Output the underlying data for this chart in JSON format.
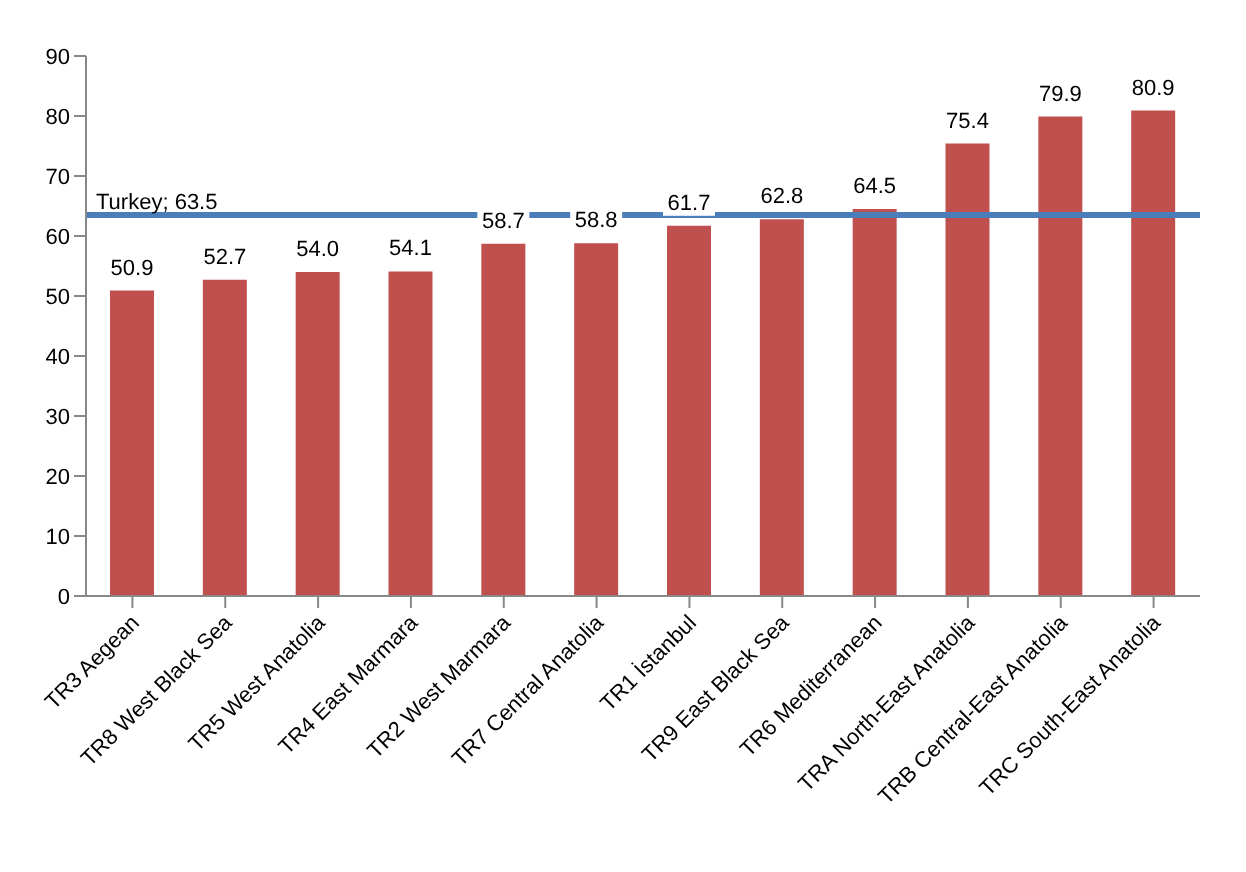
{
  "chart_data": {
    "type": "bar",
    "categories": [
      "TR3 Aegean",
      "TR8 West Black Sea",
      "TR5 West Anatolia",
      "TR4 East Marmara",
      "TR2 West Marmara",
      "TR7 Central Anatolia",
      "TR1 İstanbul",
      "TR9 East Black Sea",
      "TR6 Mediterranean",
      "TRA North-East  Anatolia",
      "TRB Central-East  Anatolia",
      "TRC South-East  Anatolia"
    ],
    "values": [
      50.9,
      52.7,
      54.0,
      54.1,
      58.7,
      58.8,
      61.7,
      62.8,
      64.5,
      75.4,
      79.9,
      80.9
    ],
    "color": "#c0504d",
    "ylim": [
      0,
      90
    ],
    "yticks": [
      0,
      10,
      20,
      30,
      40,
      50,
      60,
      70,
      80,
      90
    ],
    "value_labels": [
      "50.9",
      "52.7",
      "54.0",
      "54.1",
      "58.7",
      "58.8",
      "61.7",
      "62.8",
      "64.5",
      "75.4",
      "79.9",
      "80.9"
    ],
    "ref_lines": [
      {
        "axis": "y",
        "value": 63.5,
        "label": "Turkey; 63.5",
        "color": "#4a7ebb"
      }
    ]
  }
}
